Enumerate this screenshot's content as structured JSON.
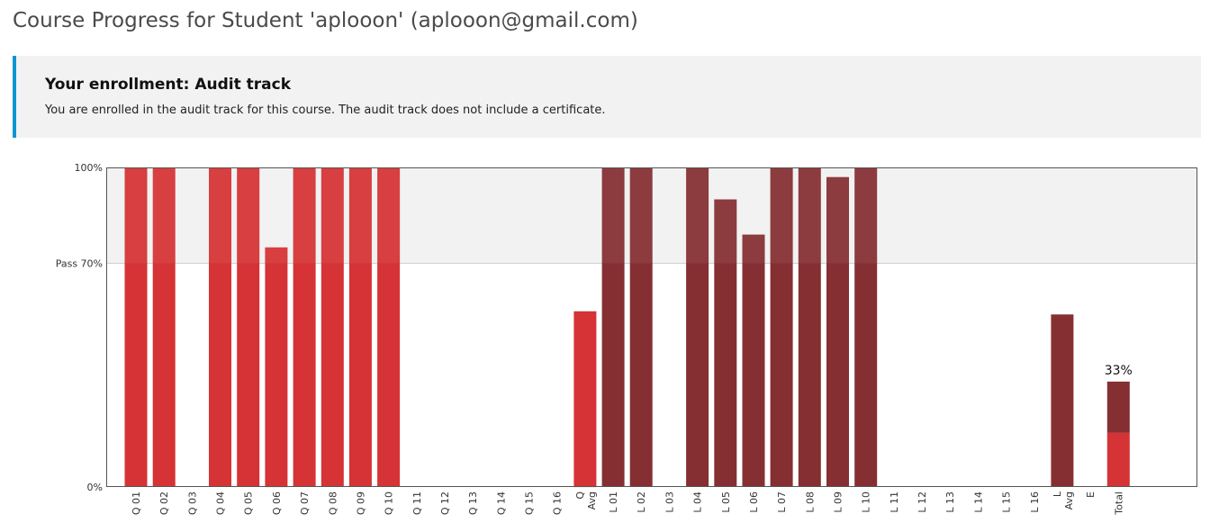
{
  "page": {
    "title": "Course Progress for Student 'aplooon' (aplooon@gmail.com)"
  },
  "enrollment": {
    "heading": "Your enrollment: Audit track",
    "message": "You are enrolled in the audit track for this course. The audit track does not include a certificate."
  },
  "colors": {
    "quiz": "#d53335",
    "lab": "#852f33",
    "pass_region": "#f2f2f2",
    "message_accent": "#0a97d1"
  },
  "chart_data": {
    "type": "bar",
    "ylim": [
      0,
      100
    ],
    "y_ticks": [
      {
        "value": 100,
        "label": "100%"
      },
      {
        "value": 70,
        "label": "Pass 70%"
      },
      {
        "value": 0,
        "label": "0%"
      }
    ],
    "pass_threshold": 70,
    "bars": [
      {
        "label": "Q 01",
        "value": 100,
        "group": "quiz"
      },
      {
        "label": "Q 02",
        "value": 100,
        "group": "quiz"
      },
      {
        "label": "Q 03",
        "value": 0,
        "group": "quiz"
      },
      {
        "label": "Q 04",
        "value": 100,
        "group": "quiz"
      },
      {
        "label": "Q 05",
        "value": 100,
        "group": "quiz"
      },
      {
        "label": "Q 06",
        "value": 75,
        "group": "quiz"
      },
      {
        "label": "Q 07",
        "value": 100,
        "group": "quiz"
      },
      {
        "label": "Q 08",
        "value": 100,
        "group": "quiz"
      },
      {
        "label": "Q 09",
        "value": 100,
        "group": "quiz"
      },
      {
        "label": "Q 10",
        "value": 100,
        "group": "quiz"
      },
      {
        "label": "Q 11",
        "value": 0,
        "group": "quiz"
      },
      {
        "label": "Q 12",
        "value": 0,
        "group": "quiz"
      },
      {
        "label": "Q 13",
        "value": 0,
        "group": "quiz"
      },
      {
        "label": "Q 14",
        "value": 0,
        "group": "quiz"
      },
      {
        "label": "Q 15",
        "value": 0,
        "group": "quiz"
      },
      {
        "label": "Q 16",
        "value": 0,
        "group": "quiz"
      },
      {
        "label": "Q Avg",
        "value": 55,
        "group": "quiz"
      },
      {
        "label": "L 01",
        "value": 100,
        "group": "lab"
      },
      {
        "label": "L 02",
        "value": 100,
        "group": "lab"
      },
      {
        "label": "L 03",
        "value": 0,
        "group": "lab"
      },
      {
        "label": "L 04",
        "value": 100,
        "group": "lab"
      },
      {
        "label": "L 05",
        "value": 90,
        "group": "lab"
      },
      {
        "label": "L 06",
        "value": 79,
        "group": "lab"
      },
      {
        "label": "L 07",
        "value": 100,
        "group": "lab"
      },
      {
        "label": "L 08",
        "value": 100,
        "group": "lab"
      },
      {
        "label": "L 09",
        "value": 97,
        "group": "lab"
      },
      {
        "label": "L 10",
        "value": 100,
        "group": "lab"
      },
      {
        "label": "L 11",
        "value": 0,
        "group": "lab"
      },
      {
        "label": "L 12",
        "value": 0,
        "group": "lab"
      },
      {
        "label": "L 13",
        "value": 0,
        "group": "lab"
      },
      {
        "label": "L 14",
        "value": 0,
        "group": "lab"
      },
      {
        "label": "L 15",
        "value": 0,
        "group": "lab"
      },
      {
        "label": "L 16",
        "value": 0,
        "group": "lab"
      },
      {
        "label": "L Avg",
        "value": 54,
        "group": "lab"
      },
      {
        "label": "E",
        "value": 0,
        "group": "exam"
      }
    ],
    "total": {
      "label": "Total",
      "value": 33,
      "value_label": "33%",
      "segments": [
        {
          "group": "quiz",
          "value": 17
        },
        {
          "group": "lab",
          "value": 16
        }
      ]
    }
  }
}
